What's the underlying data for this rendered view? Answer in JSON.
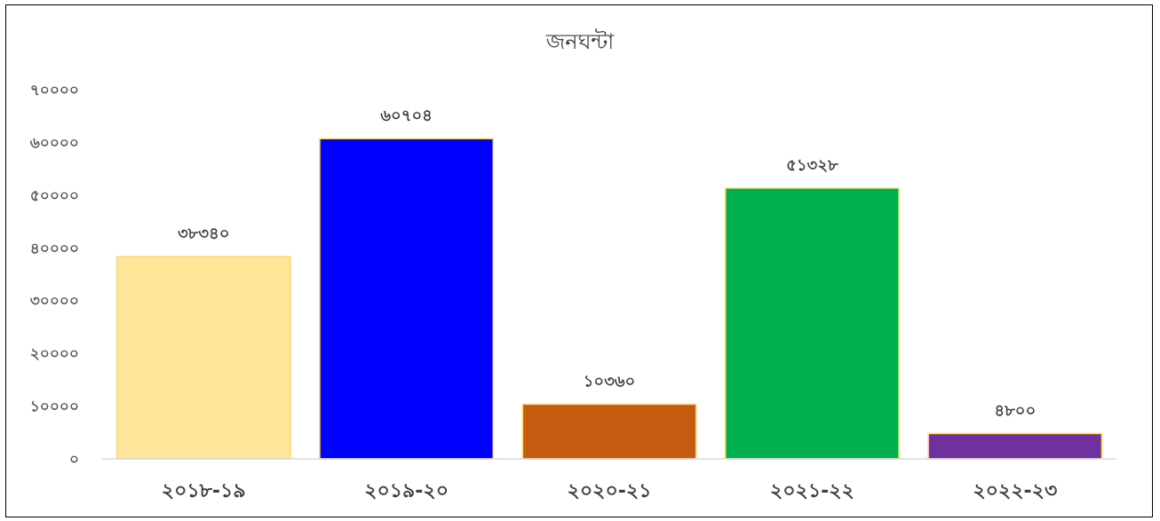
{
  "chart_data": {
    "type": "bar",
    "title": "জনঘন্টা",
    "categories": [
      "২০১৮-১৯",
      "২০১৯-২০",
      "২০২০-২১",
      "২০২১-২২",
      "২০২২-২৩"
    ],
    "values": [
      38340,
      60704,
      10360,
      51328,
      4800
    ],
    "data_labels": [
      "৩৮৩৪০",
      "৬০৭০৪",
      "১০৩৬০",
      "৫১৩২৮",
      "৪৮০০"
    ],
    "bar_colors": [
      "#FFE699",
      "#0000FF",
      "#C55A11",
      "#00B050",
      "#7030A0"
    ],
    "bar_border_color": "#FFD966",
    "ylim": [
      0,
      70000
    ],
    "yticks": [
      0,
      10000,
      20000,
      30000,
      40000,
      50000,
      60000,
      70000
    ],
    "ytick_labels": [
      "০",
      "১০০০০",
      "২০০০০",
      "৩০০০০",
      "৪০০০০",
      "৫০০০০",
      "৬০০০০",
      "৭০০০০"
    ],
    "xlabel": "",
    "ylabel": "",
    "grid": false,
    "legend": "none"
  }
}
